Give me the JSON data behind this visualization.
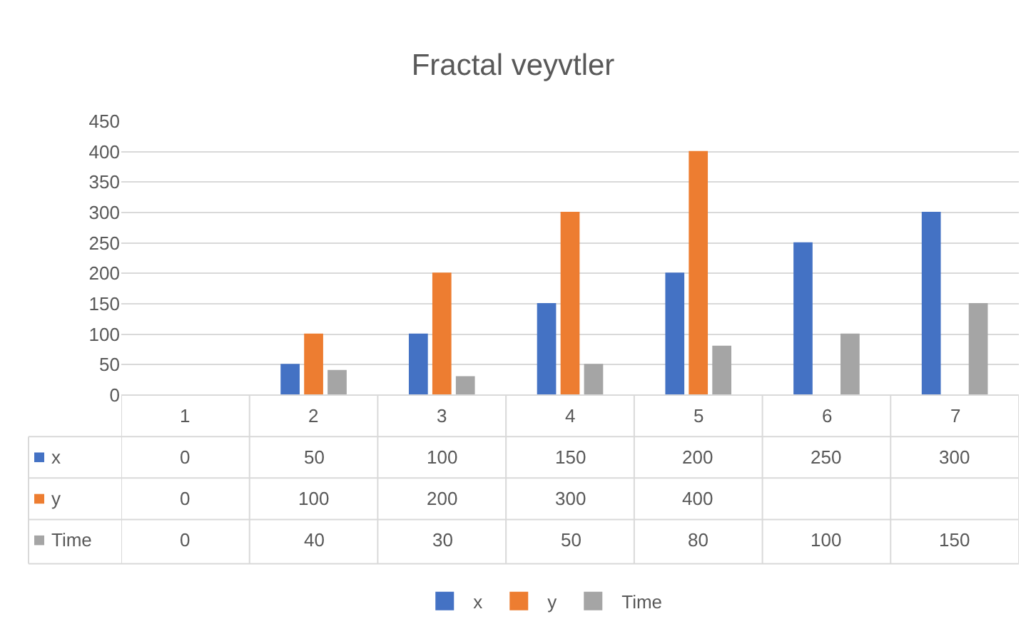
{
  "chart_data": {
    "type": "bar",
    "title": "Fractal veyvtler",
    "categories": [
      "1",
      "2",
      "3",
      "4",
      "5",
      "6",
      "7"
    ],
    "series": [
      {
        "name": "x",
        "color": "#4472c4",
        "values": [
          0,
          50,
          100,
          150,
          200,
          250,
          300
        ]
      },
      {
        "name": "y",
        "color": "#ed7d31",
        "values": [
          0,
          100,
          200,
          300,
          400,
          null,
          null
        ]
      },
      {
        "name": "Time",
        "color": "#a5a5a5",
        "values": [
          0,
          40,
          30,
          50,
          80,
          100,
          150
        ]
      }
    ],
    "ylim": [
      0,
      450
    ],
    "yticks": [
      0,
      50,
      100,
      150,
      200,
      250,
      300,
      350,
      400,
      450
    ],
    "grid": "y",
    "legend": "bottom",
    "data_labels": true
  }
}
